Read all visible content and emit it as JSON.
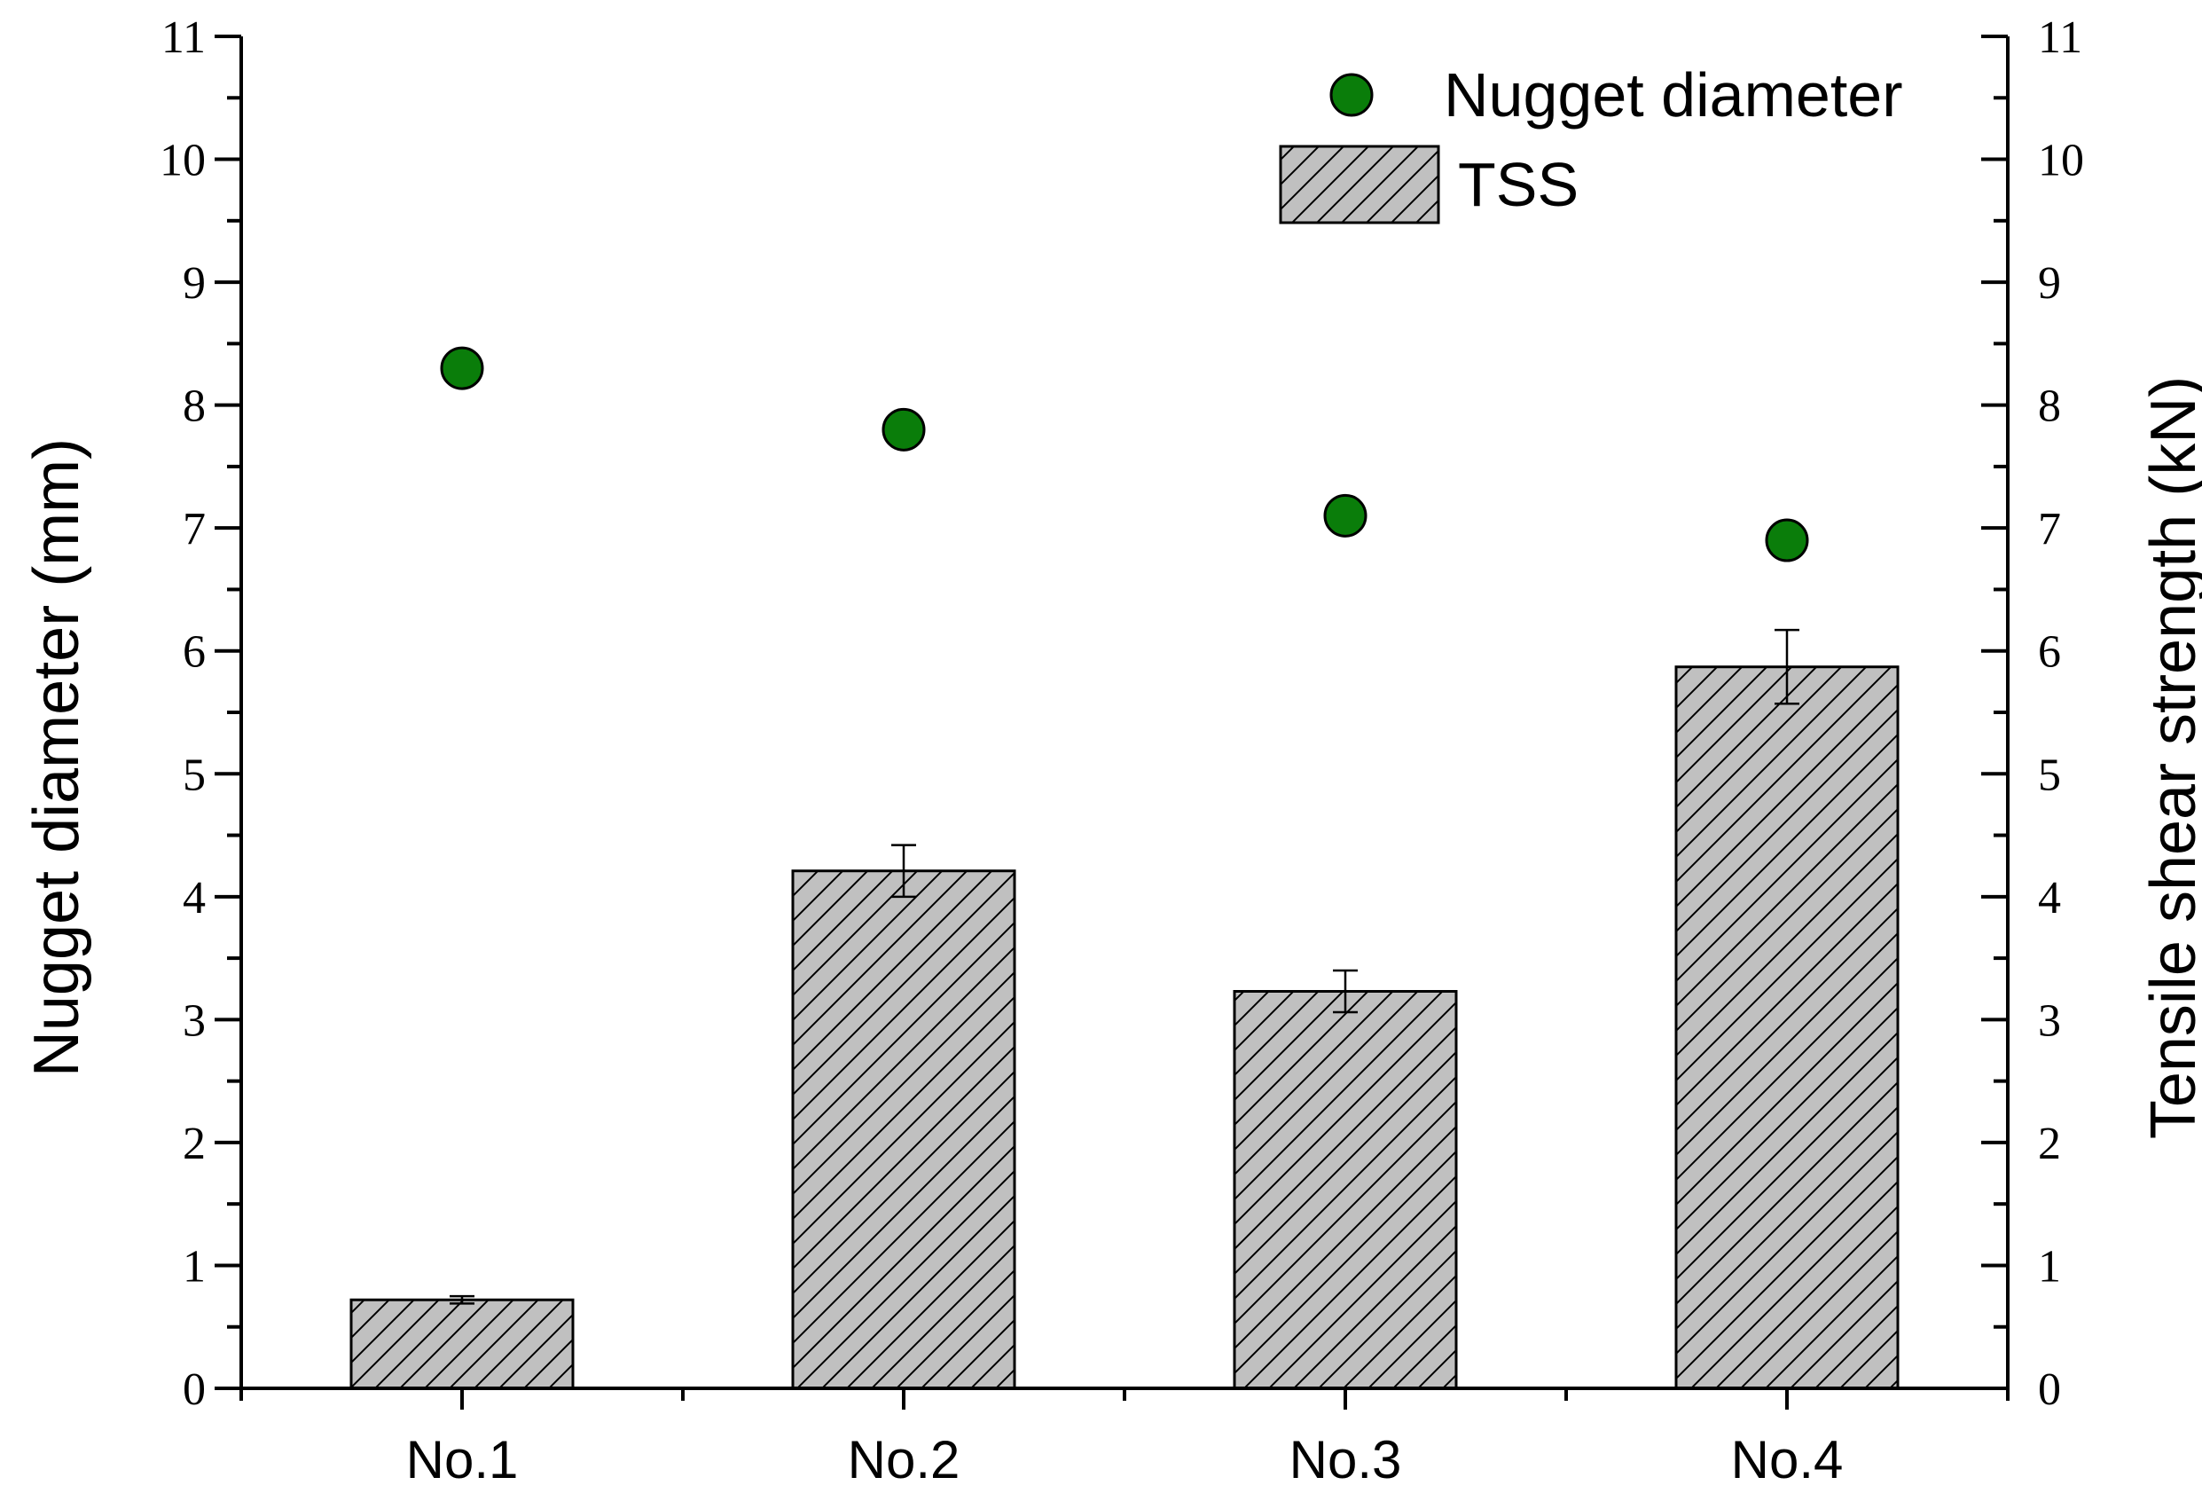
{
  "chart_data": {
    "type": "bar",
    "categories": [
      "No.1",
      "No.2",
      "No.3",
      "No.4"
    ],
    "series": [
      {
        "name": "TSS",
        "kind": "bar",
        "axis": "right",
        "values": [
          0.72,
          4.21,
          3.23,
          5.87
        ],
        "errors": [
          0.03,
          0.21,
          0.17,
          0.3
        ],
        "fill": "#c0c0c0",
        "pattern": "diagonal-hatch"
      },
      {
        "name": "Nugget diameter",
        "kind": "scatter",
        "axis": "left",
        "values": [
          8.3,
          7.8,
          7.1,
          6.9
        ],
        "color": "#0a7d0a"
      }
    ],
    "ylabel": "Nugget diameter (mm)",
    "ylabel_right": "Tensile shear strength (kN)",
    "ylim": [
      0,
      11
    ],
    "ylim_right": [
      0,
      11
    ],
    "yticks": [
      "0",
      "1",
      "2",
      "3",
      "4",
      "5",
      "6",
      "7",
      "8",
      "9",
      "10",
      "11"
    ],
    "legend_position": "top-right",
    "grid": false
  }
}
